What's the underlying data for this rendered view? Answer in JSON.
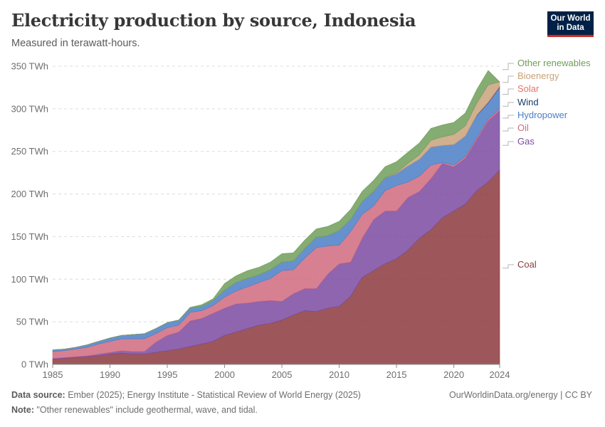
{
  "header": {
    "title": "Electricity production by source, Indonesia",
    "subtitle": "Measured in terawatt-hours.",
    "logo_line1": "Our World",
    "logo_line2": "in Data"
  },
  "footer": {
    "source_label": "Data source:",
    "source_text": " Ember (2025); Energy Institute - Statistical Review of World Energy (2025)",
    "note_label": "Note:",
    "note_text": " \"Other renewables\" include geothermal, wave, and tidal.",
    "credit": "OurWorldinData.org/energy | CC BY"
  },
  "chart_data": {
    "type": "area",
    "stacked": true,
    "unit": "TWh",
    "ylim": [
      0,
      350
    ],
    "xlim": [
      1985,
      2024
    ],
    "y_ticks": [
      0,
      50,
      100,
      150,
      200,
      250,
      300,
      350
    ],
    "y_tick_labels": [
      "0 TWh",
      "50 TWh",
      "100 TWh",
      "150 TWh",
      "200 TWh",
      "250 TWh",
      "300 TWh",
      "350 TWh"
    ],
    "x_ticks": [
      1985,
      1990,
      1995,
      2000,
      2005,
      2010,
      2015,
      2020,
      2024
    ],
    "x_tick_labels": [
      "1985",
      "1990",
      "1995",
      "2000",
      "2005",
      "2010",
      "2015",
      "2020",
      "2024"
    ],
    "grid": "horizontal-dashed",
    "legend_placement": "right",
    "x": [
      1985,
      1986,
      1987,
      1988,
      1989,
      1990,
      1991,
      1992,
      1993,
      1994,
      1995,
      1996,
      1997,
      1998,
      1999,
      2000,
      2001,
      2002,
      2003,
      2004,
      2005,
      2006,
      2007,
      2008,
      2009,
      2010,
      2011,
      2012,
      2013,
      2014,
      2015,
      2016,
      2017,
      2018,
      2019,
      2020,
      2021,
      2022,
      2023,
      2024
    ],
    "series": [
      {
        "name": "Coal",
        "color": "#8c3a3d",
        "label_value": 113,
        "values": [
          6,
          7,
          8,
          9,
          10,
          12,
          13,
          12,
          12,
          14,
          16,
          18,
          21,
          24,
          27,
          34,
          38,
          42,
          46,
          48,
          52,
          58,
          63,
          62,
          66,
          68,
          80,
          102,
          110,
          118,
          124,
          134,
          148,
          158,
          172,
          180,
          188,
          204,
          214,
          228
        ]
      },
      {
        "name": "Gas",
        "color": "#7a4aa0",
        "label_value": 257,
        "values": [
          1,
          1,
          1,
          1,
          2,
          2,
          3,
          3,
          3,
          12,
          18,
          20,
          30,
          30,
          33,
          32,
          33,
          30,
          28,
          27,
          22,
          25,
          26,
          27,
          40,
          50,
          40,
          46,
          60,
          62,
          56,
          62,
          55,
          60,
          64,
          52,
          54,
          60,
          72,
          70
        ]
      },
      {
        "name": "Oil",
        "color": "#d06a7f",
        "label_value": 274,
        "values": [
          8,
          8,
          9,
          10,
          12,
          13,
          14,
          15,
          15,
          10,
          9,
          8,
          10,
          9,
          9,
          13,
          15,
          19,
          22,
          26,
          36,
          28,
          36,
          48,
          33,
          22,
          36,
          28,
          16,
          24,
          30,
          18,
          18,
          16,
          1,
          2,
          2,
          2,
          2,
          2
        ]
      },
      {
        "name": "Hydropower",
        "color": "#4a7fc6",
        "label_value": 289,
        "values": [
          2,
          2,
          2,
          3,
          3,
          4,
          4,
          5,
          6,
          6,
          6,
          6,
          5,
          5,
          6,
          8,
          10,
          10,
          9,
          10,
          10,
          10,
          11,
          12,
          12,
          17,
          14,
          15,
          17,
          15,
          14,
          19,
          20,
          21,
          20,
          24,
          24,
          26,
          19,
          25
        ]
      },
      {
        "name": "Wind",
        "color": "#1a3a68",
        "label_value": 303,
        "values": [
          0,
          0,
          0,
          0,
          0,
          0,
          0,
          0,
          0,
          0,
          0,
          0,
          0,
          0,
          0,
          0,
          0,
          0,
          0,
          0,
          0,
          0,
          0,
          0,
          0,
          0,
          0,
          0,
          0,
          0,
          0,
          0,
          0,
          0,
          0,
          0,
          0,
          0.5,
          0.5,
          0.6
        ]
      },
      {
        "name": "Solar",
        "color": "#e2746a",
        "label_value": 317,
        "values": [
          0,
          0,
          0,
          0,
          0,
          0,
          0,
          0,
          0,
          0,
          0,
          0,
          0,
          0,
          0,
          0,
          0,
          0,
          0,
          0,
          0,
          0,
          0,
          0,
          0,
          0,
          0,
          0,
          0,
          0,
          0,
          0,
          0,
          0,
          0,
          0,
          0,
          0,
          0.5,
          1
        ]
      },
      {
        "name": "Bioenergy",
        "color": "#c8a27a",
        "label_value": 331,
        "values": [
          0,
          0,
          0,
          0,
          0,
          0,
          0,
          0,
          0,
          0,
          0,
          0,
          0,
          0,
          0,
          0,
          0,
          0,
          0,
          0,
          0,
          0,
          0,
          0,
          0,
          0,
          0,
          0,
          0,
          0,
          1,
          3,
          5,
          8,
          10,
          12,
          12,
          14,
          20,
          5
        ]
      },
      {
        "name": "Other renewables",
        "color": "#6f9e5a",
        "label_value": 346,
        "values": [
          0,
          0,
          0,
          0,
          0,
          0,
          0,
          0,
          0,
          0,
          0,
          0,
          1,
          2,
          2,
          8,
          8,
          9,
          9,
          9,
          10,
          10,
          10,
          10,
          11,
          11,
          12,
          12,
          13,
          13,
          13,
          13,
          14,
          14,
          14,
          14,
          15,
          16,
          17,
          0
        ]
      }
    ]
  }
}
